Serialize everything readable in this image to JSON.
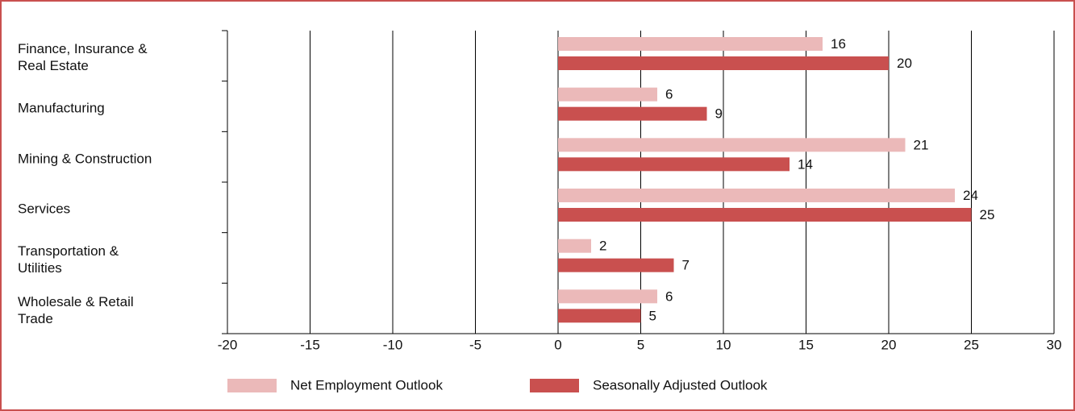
{
  "chart_data": {
    "type": "bar",
    "orientation": "horizontal",
    "categories": [
      "Finance, Insurance &\nReal Estate",
      "Manufacturing",
      "Mining & Construction",
      "Services",
      "Transportation &\nUtilities",
      "Wholesale & Retail\nTrade"
    ],
    "series": [
      {
        "name": "Net Employment Outlook",
        "color": "#ebb9b9",
        "values": [
          16,
          6,
          21,
          24,
          2,
          6
        ]
      },
      {
        "name": "Seasonally Adjusted Outlook",
        "color": "#c9504f",
        "values": [
          20,
          9,
          14,
          25,
          7,
          5
        ]
      }
    ],
    "xlim": [
      -20,
      30
    ],
    "xticks": [
      -20,
      -15,
      -10,
      -5,
      0,
      5,
      10,
      15,
      20,
      25,
      30
    ],
    "grid": true
  }
}
